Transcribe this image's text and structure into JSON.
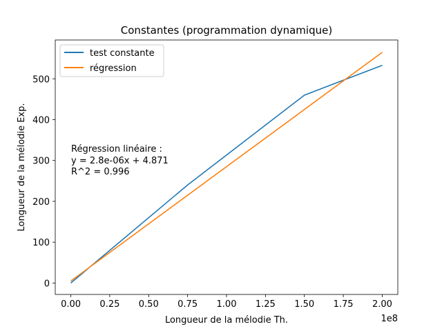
{
  "chart_data": {
    "type": "line",
    "title": "Constantes (programmation dynamique)",
    "xlabel": "Longueur de la mélodie Th.",
    "ylabel": "Longueur de la mélodie Exp.",
    "x_offset_label": "1e8",
    "xlim": [
      -0.1,
      2.1
    ],
    "ylim": [
      -28,
      595
    ],
    "xticks": [
      0.0,
      0.25,
      0.5,
      0.75,
      1.0,
      1.25,
      1.5,
      1.75,
      2.0
    ],
    "xtick_labels": [
      "0.00",
      "0.25",
      "0.50",
      "0.75",
      "1.00",
      "1.25",
      "1.50",
      "1.75",
      "2.00"
    ],
    "yticks": [
      0,
      100,
      200,
      300,
      400,
      500
    ],
    "ytick_labels": [
      "0",
      "100",
      "200",
      "300",
      "400",
      "500"
    ],
    "grid": false,
    "legend_position": "top-left",
    "series": [
      {
        "name": "test constante",
        "color": "#1f77b4",
        "x": [
          0.0,
          0.75,
          1.5,
          2.0
        ],
        "y": [
          0,
          240,
          460,
          533
        ]
      },
      {
        "name": "régression",
        "color": "#ff7f0e",
        "x": [
          0.0,
          2.0
        ],
        "y": [
          4.871,
          564.871
        ]
      }
    ],
    "annotation": {
      "lines": [
        "Régression linéaire :",
        "y = 2.8e-06x + 4.871",
        "R^2 = 0.996"
      ]
    }
  }
}
